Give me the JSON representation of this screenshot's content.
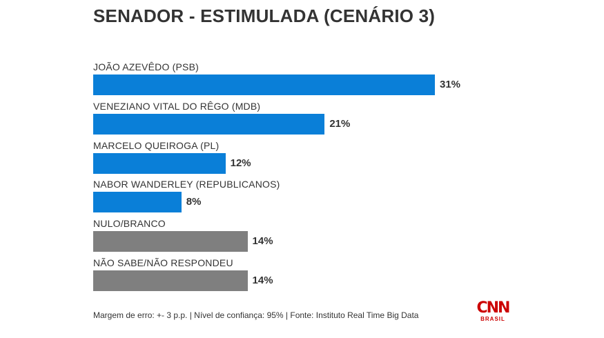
{
  "chart_data": {
    "type": "bar",
    "orientation": "horizontal",
    "title": "SENADOR - ESTIMULADA (CENÁRIO 3)",
    "categories": [
      "JOÃO AZEVÊDO (PSB)",
      "VENEZIANO VITAL DO RÊGO (MDB)",
      "MARCELO QUEIROGA (PL)",
      "NABOR WANDERLEY (REPUBLICANOS)",
      "NULO/BRANCO",
      "NÃO SABE/NÃO RESPONDEU"
    ],
    "values": [
      31,
      21,
      12,
      8,
      14,
      14
    ],
    "value_labels": [
      "31%",
      "21%",
      "12%",
      "8%",
      "14%",
      "14%"
    ],
    "colors": [
      "#0a7fd8",
      "#0a7fd8",
      "#0a7fd8",
      "#0a7fd8",
      "#7f7f7f",
      "#7f7f7f"
    ],
    "xlabel": "",
    "ylabel": "",
    "xlim": [
      0,
      31
    ],
    "grid": false,
    "legend": "none"
  },
  "footer": {
    "note": "Margem de erro: +- 3 p.p. | Nível de confiança: 95% | Fonte: Instituto Real Time Big Data"
  },
  "logo": {
    "main": "CNN",
    "sub": "BRASIL"
  }
}
